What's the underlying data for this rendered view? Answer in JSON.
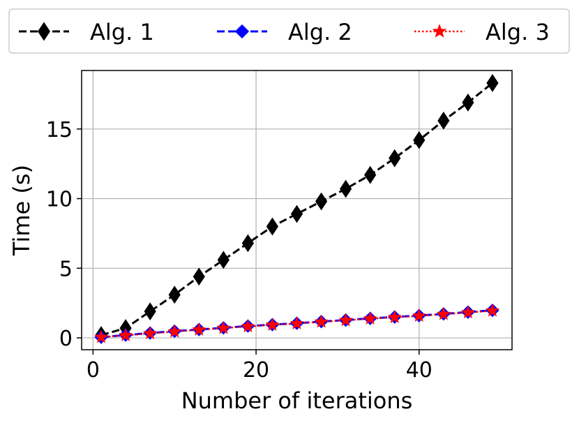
{
  "chart_data": {
    "type": "line",
    "xlabel": "Number of iterations",
    "ylabel": "Time (s)",
    "xlim": [
      -1.4,
      51.4
    ],
    "ylim": [
      -0.85,
      19.2
    ],
    "xticks": [
      0,
      20,
      40
    ],
    "yticks": [
      0,
      5,
      10,
      15
    ],
    "xtick_labels": [
      "0",
      "20",
      "40"
    ],
    "ytick_labels": [
      "0",
      "5",
      "10",
      "15"
    ],
    "grid": true,
    "legend_position": "top",
    "x": [
      1,
      4,
      7,
      10,
      13,
      16,
      19,
      22,
      25,
      28,
      31,
      34,
      37,
      40,
      43,
      46,
      49
    ],
    "series": [
      {
        "name": "Alg. 1",
        "color": "#000000",
        "marker": "thin-diamond",
        "linestyle": "dashed",
        "values": [
          0.2,
          0.7,
          1.9,
          3.1,
          4.4,
          5.6,
          6.8,
          8.0,
          8.9,
          9.8,
          10.7,
          11.7,
          12.9,
          14.2,
          15.6,
          16.9,
          18.3
        ]
      },
      {
        "name": "Alg. 2",
        "color": "#0000ff",
        "marker": "diamond",
        "linestyle": "dashed",
        "values": [
          0.05,
          0.2,
          0.35,
          0.48,
          0.6,
          0.72,
          0.85,
          0.95,
          1.05,
          1.17,
          1.28,
          1.4,
          1.5,
          1.6,
          1.72,
          1.85,
          1.98
        ]
      },
      {
        "name": "Alg. 3",
        "color": "#ff0000",
        "marker": "star",
        "linestyle": "dotted",
        "values": [
          0.05,
          0.18,
          0.32,
          0.45,
          0.58,
          0.7,
          0.82,
          0.93,
          1.03,
          1.15,
          1.26,
          1.38,
          1.48,
          1.58,
          1.7,
          1.82,
          1.95
        ]
      }
    ]
  }
}
